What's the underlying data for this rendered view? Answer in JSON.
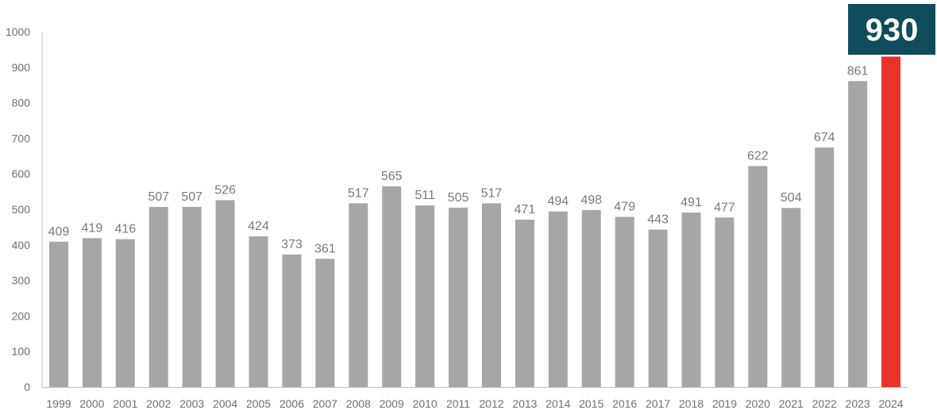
{
  "chart_data": {
    "type": "bar",
    "categories": [
      "1999",
      "2000",
      "2001",
      "2002",
      "2003",
      "2004",
      "2005",
      "2006",
      "2007",
      "2008",
      "2009",
      "2010",
      "2011",
      "2012",
      "2013",
      "2014",
      "2015",
      "2016",
      "2017",
      "2018",
      "2019",
      "2020",
      "2021",
      "2022",
      "2023",
      "2024"
    ],
    "values": [
      409,
      419,
      416,
      507,
      507,
      526,
      424,
      373,
      361,
      517,
      565,
      511,
      505,
      517,
      471,
      494,
      498,
      479,
      443,
      491,
      477,
      622,
      504,
      674,
      861,
      930
    ],
    "value_labels": [
      "409",
      "419",
      "416",
      "507",
      "507",
      "526",
      "424",
      "373",
      "361",
      "517",
      "565",
      "511",
      "505",
      "517",
      "471",
      "494",
      "498",
      "479",
      "443",
      "491",
      "477",
      "622",
      "504",
      "674",
      "861",
      ""
    ],
    "ylim": [
      0,
      1000
    ],
    "yticks": [
      "0",
      "100",
      "200",
      "300",
      "400",
      "500",
      "600",
      "700",
      "800",
      "900",
      "1000"
    ],
    "grid": false,
    "title": "",
    "xlabel": "",
    "ylabel": "",
    "highlight": {
      "category": "2024",
      "label": "930"
    },
    "colors": {
      "bar": "#a6a6a6",
      "highlight_bar": "#e8322a",
      "highlight_box": "#0f4c5c",
      "axis": "#bfbfbf"
    }
  }
}
